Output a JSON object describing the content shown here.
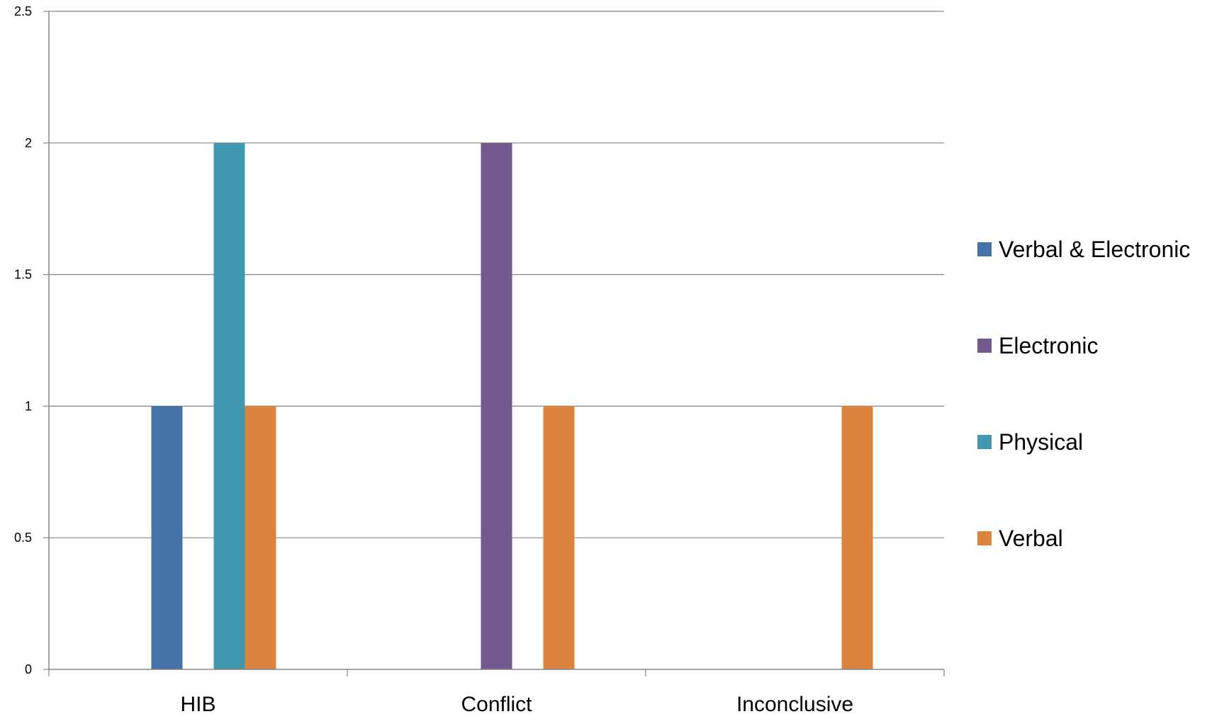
{
  "chart_data": {
    "type": "bar",
    "title": "",
    "xlabel": "",
    "ylabel": "",
    "categories": [
      "HIB",
      "Conflict",
      "Inconclusive"
    ],
    "ylim": [
      0,
      2.5
    ],
    "yticks": [
      "0",
      "0.5",
      "1",
      "1.5",
      "2",
      "2.5"
    ],
    "ytick_values": [
      0,
      0.5,
      1,
      1.5,
      2,
      2.5
    ],
    "grid": true,
    "legend_position": "right",
    "series": [
      {
        "name": "Verbal & Electronic",
        "color": "#4672a8",
        "values": [
          1,
          0,
          0
        ]
      },
      {
        "name": "Electronic",
        "color": "#72588f",
        "values": [
          0,
          2,
          0
        ]
      },
      {
        "name": "Physical",
        "color": "#4298b0",
        "values": [
          2,
          0,
          0
        ]
      },
      {
        "name": "Verbal",
        "color": "#dc843d",
        "values": [
          1,
          1,
          1
        ]
      }
    ]
  }
}
